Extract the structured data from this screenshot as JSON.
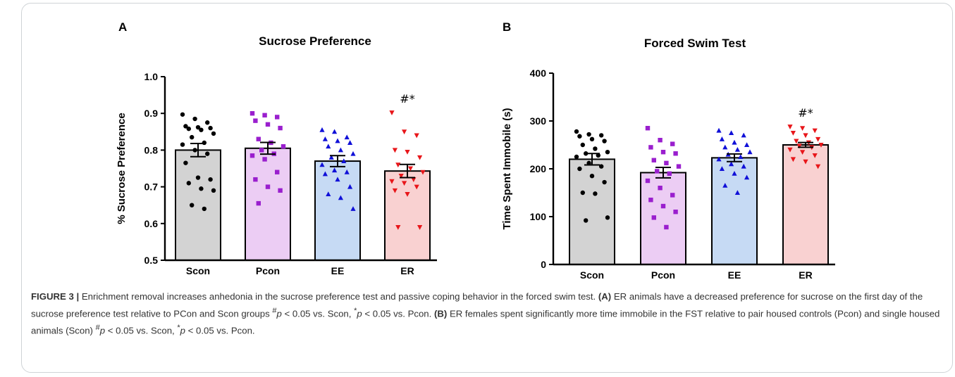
{
  "chart_data": [
    {
      "type": "bar",
      "panel": "A",
      "title": "Sucrose Preference",
      "xlabel": "",
      "ylabel": "% Sucrose Preference",
      "ylim": [
        0.5,
        1.0
      ],
      "yticks": [
        "0.5",
        "0.6",
        "0.7",
        "0.8",
        "0.9",
        "1.0"
      ],
      "categories": [
        "Scon",
        "Pcon",
        "EE",
        "ER"
      ],
      "values": [
        0.8,
        0.805,
        0.77,
        0.743
      ],
      "errors": [
        0.018,
        0.016,
        0.015,
        0.018
      ],
      "significance": [
        "",
        "",
        "",
        "#*"
      ],
      "points": [
        [
          0.897,
          0.885,
          0.875,
          0.865,
          0.862,
          0.86,
          0.858,
          0.855,
          0.845,
          0.835,
          0.82,
          0.815,
          0.8,
          0.79,
          0.765,
          0.725,
          0.72,
          0.71,
          0.695,
          0.69,
          0.65,
          0.64
        ],
        [
          0.9,
          0.895,
          0.89,
          0.88,
          0.87,
          0.86,
          0.83,
          0.82,
          0.81,
          0.8,
          0.79,
          0.785,
          0.775,
          0.74,
          0.72,
          0.7,
          0.69,
          0.655
        ],
        [
          0.855,
          0.85,
          0.835,
          0.83,
          0.825,
          0.82,
          0.81,
          0.8,
          0.79,
          0.78,
          0.77,
          0.76,
          0.745,
          0.74,
          0.735,
          0.72,
          0.7,
          0.68,
          0.67,
          0.64
        ],
        [
          0.902,
          0.85,
          0.84,
          0.8,
          0.795,
          0.78,
          0.76,
          0.75,
          0.74,
          0.73,
          0.72,
          0.715,
          0.71,
          0.7,
          0.69,
          0.68,
          0.59,
          0.59
        ]
      ],
      "colors": {
        "bars": [
          "#d3d3d3",
          "#eccdf4",
          "#c6daf4",
          "#f9d1d1"
        ],
        "points": [
          "#000000",
          "#9a1fce",
          "#1010d8",
          "#e8161a"
        ]
      }
    },
    {
      "type": "bar",
      "panel": "B",
      "title": "Forced Swim Test",
      "xlabel": "",
      "ylabel": "Time Spent Immobile (s)",
      "ylim": [
        0,
        400
      ],
      "yticks": [
        "0",
        "100",
        "200",
        "300",
        "400"
      ],
      "categories": [
        "Scon",
        "Pcon",
        "EE",
        "ER"
      ],
      "values": [
        220,
        192,
        223,
        250
      ],
      "errors": [
        12,
        11,
        8,
        5
      ],
      "significance": [
        "",
        "",
        "",
        "#*"
      ],
      "points": [
        [
          278,
          272,
          270,
          268,
          262,
          258,
          250,
          242,
          235,
          232,
          228,
          225,
          212,
          205,
          200,
          185,
          172,
          150,
          148,
          98,
          92
        ],
        [
          285,
          260,
          252,
          245,
          235,
          232,
          218,
          212,
          205,
          195,
          190,
          175,
          160,
          145,
          135,
          122,
          110,
          98,
          78
        ],
        [
          280,
          275,
          270,
          262,
          255,
          250,
          245,
          240,
          235,
          230,
          225,
          220,
          210,
          205,
          200,
          190,
          182,
          165,
          150
        ],
        [
          288,
          285,
          280,
          275,
          270,
          262,
          258,
          255,
          250,
          248,
          245,
          240,
          235,
          228,
          220,
          215,
          205
        ]
      ],
      "colors": {
        "bars": [
          "#d3d3d3",
          "#eccdf4",
          "#c6daf4",
          "#f9d1d1"
        ],
        "points": [
          "#000000",
          "#9a1fce",
          "#1010d8",
          "#e8161a"
        ]
      }
    }
  ],
  "markers": [
    "circle",
    "square",
    "triangle-up",
    "triangle-down"
  ],
  "caption": {
    "figure_label": "FIGURE 3 |",
    "text1": " Enrichment removal increases anhedonia in the sucrose preference test and passive coping behavior in the forced swim test. ",
    "label_a": "(A)",
    "text2": " ER animals have a decreased preference for sucrose on the first day of the sucrose preference test relative to PCon and Scon groups ",
    "sig1_sym": "#",
    "sig1_p": "p",
    "sig1_rest": " < 0.05 vs. Scon, ",
    "sig2_sym": "*",
    "sig2_p": "p",
    "sig2_rest": " < 0.05 vs. Pcon. ",
    "label_b": "(B)",
    "text3": " ER females spent significantly more time immobile in the FST relative to pair housed controls (Pcon) and single housed animals (Scon) ",
    "sig3_sym": "#",
    "sig3_p": "p",
    "sig3_rest": " < 0.05 vs. Scon, ",
    "sig4_sym": "*",
    "sig4_p": "p",
    "sig4_rest": " < 0.05 vs. Pcon."
  }
}
